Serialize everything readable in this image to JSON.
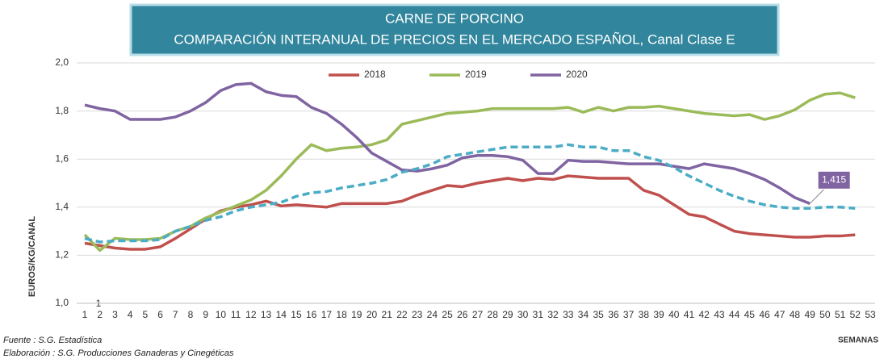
{
  "chart_data": {
    "type": "line",
    "title": "CARNE DE PORCINO",
    "subtitle": "COMPARACIÓN INTERANUAL DE PRECIOS EN EL MERCADO ESPAÑOL, Canal Clase E",
    "y_label": "EUROS/KG/CANAL",
    "x_label": "SEMANAS",
    "source": "Fuente :  S.G. Estadística",
    "credit": "Elaboración : S.G. Producciones Ganaderas y Cinegéticas",
    "annotation": "1",
    "x": [
      1,
      2,
      3,
      4,
      5,
      6,
      7,
      8,
      9,
      10,
      11,
      12,
      13,
      14,
      15,
      16,
      17,
      18,
      19,
      20,
      21,
      22,
      23,
      24,
      25,
      26,
      27,
      28,
      29,
      30,
      31,
      32,
      33,
      34,
      35,
      36,
      37,
      38,
      39,
      40,
      41,
      42,
      43,
      44,
      45,
      46,
      47,
      48,
      49,
      50,
      51,
      52
    ],
    "xlim": [
      1,
      53
    ],
    "xticks": [
      1,
      2,
      3,
      4,
      5,
      6,
      7,
      8,
      9,
      10,
      11,
      12,
      13,
      14,
      15,
      16,
      17,
      18,
      19,
      20,
      21,
      22,
      23,
      24,
      25,
      26,
      27,
      28,
      29,
      30,
      31,
      32,
      33,
      34,
      35,
      36,
      37,
      38,
      39,
      40,
      41,
      42,
      43,
      44,
      45,
      46,
      47,
      48,
      49,
      50,
      51,
      52,
      53
    ],
    "ylim": [
      1,
      2
    ],
    "yticks": [
      {
        "value": 1,
        "label": "1,0"
      },
      {
        "value": 1.2,
        "label": "1,2"
      },
      {
        "value": 1.4,
        "label": "1,4"
      },
      {
        "value": 1.6,
        "label": "1,6"
      },
      {
        "value": 1.8,
        "label": "1,8"
      },
      {
        "value": 2,
        "label": "2,0"
      }
    ],
    "grid": true,
    "series": [
      {
        "name": "2018",
        "color": "#c0504d",
        "values": [
          1.25,
          1.24,
          1.23,
          1.225,
          1.225,
          1.235,
          1.27,
          1.31,
          1.35,
          1.385,
          1.4,
          1.41,
          1.425,
          1.405,
          1.41,
          1.405,
          1.4,
          1.415,
          1.415,
          1.415,
          1.415,
          1.425,
          1.45,
          1.47,
          1.49,
          1.485,
          1.5,
          1.51,
          1.52,
          1.51,
          1.52,
          1.515,
          1.53,
          1.525,
          1.52,
          1.52,
          1.52,
          1.47,
          1.45,
          1.41,
          1.37,
          1.36,
          1.33,
          1.3,
          1.29,
          1.285,
          1.28,
          1.275,
          1.275,
          1.28,
          1.28,
          1.285
        ]
      },
      {
        "name": "2019",
        "color": "#9bbb59",
        "values": [
          1.285,
          1.22,
          1.27,
          1.265,
          1.265,
          1.27,
          1.3,
          1.32,
          1.355,
          1.38,
          1.405,
          1.43,
          1.47,
          1.53,
          1.6,
          1.66,
          1.635,
          1.645,
          1.65,
          1.66,
          1.68,
          1.745,
          1.76,
          1.775,
          1.79,
          1.795,
          1.8,
          1.81,
          1.81,
          1.81,
          1.81,
          1.81,
          1.815,
          1.795,
          1.815,
          1.8,
          1.815,
          1.815,
          1.82,
          1.81,
          1.8,
          1.79,
          1.785,
          1.78,
          1.785,
          1.765,
          1.78,
          1.805,
          1.845,
          1.87,
          1.875,
          1.855
        ]
      },
      {
        "name": "2020",
        "color": "#8064a2",
        "values": [
          1.825,
          1.81,
          1.8,
          1.765,
          1.765,
          1.765,
          1.775,
          1.8,
          1.835,
          1.885,
          1.91,
          1.915,
          1.88,
          1.865,
          1.86,
          1.815,
          1.79,
          1.745,
          1.69,
          1.625,
          1.59,
          1.555,
          1.55,
          1.56,
          1.575,
          1.605,
          1.615,
          1.615,
          1.61,
          1.595,
          1.54,
          1.54,
          1.595,
          1.59,
          1.59,
          1.585,
          1.58,
          1.58,
          1.58,
          1.57,
          1.56,
          1.58,
          1.57,
          1.56,
          1.54,
          1.515,
          1.48,
          1.44,
          1.415,
          null,
          null,
          null
        ],
        "value_labels": [
          null,
          null,
          null,
          null,
          null,
          null,
          null,
          null,
          null,
          null,
          null,
          null,
          null,
          null,
          null,
          null,
          null,
          null,
          null,
          null,
          null,
          null,
          null,
          null,
          null,
          null,
          null,
          null,
          null,
          null,
          null,
          null,
          null,
          null,
          null,
          null,
          null,
          null,
          null,
          null,
          null,
          null,
          null,
          null,
          null,
          null,
          null,
          null,
          "1,415",
          null,
          null,
          null
        ]
      },
      {
        "color": "#4bacc6",
        "dash": true,
        "values": [
          1.27,
          1.255,
          1.26,
          1.26,
          1.26,
          1.265,
          1.3,
          1.32,
          1.345,
          1.36,
          1.385,
          1.4,
          1.41,
          1.42,
          1.445,
          1.46,
          1.465,
          1.48,
          1.49,
          1.5,
          1.515,
          1.545,
          1.56,
          1.58,
          1.61,
          1.62,
          1.63,
          1.64,
          1.65,
          1.65,
          1.65,
          1.65,
          1.66,
          1.65,
          1.65,
          1.635,
          1.635,
          1.61,
          1.595,
          1.565,
          1.53,
          1.5,
          1.47,
          1.445,
          1.425,
          1.41,
          1.4,
          1.395,
          1.395,
          1.4,
          1.4,
          1.395
        ]
      }
    ]
  }
}
